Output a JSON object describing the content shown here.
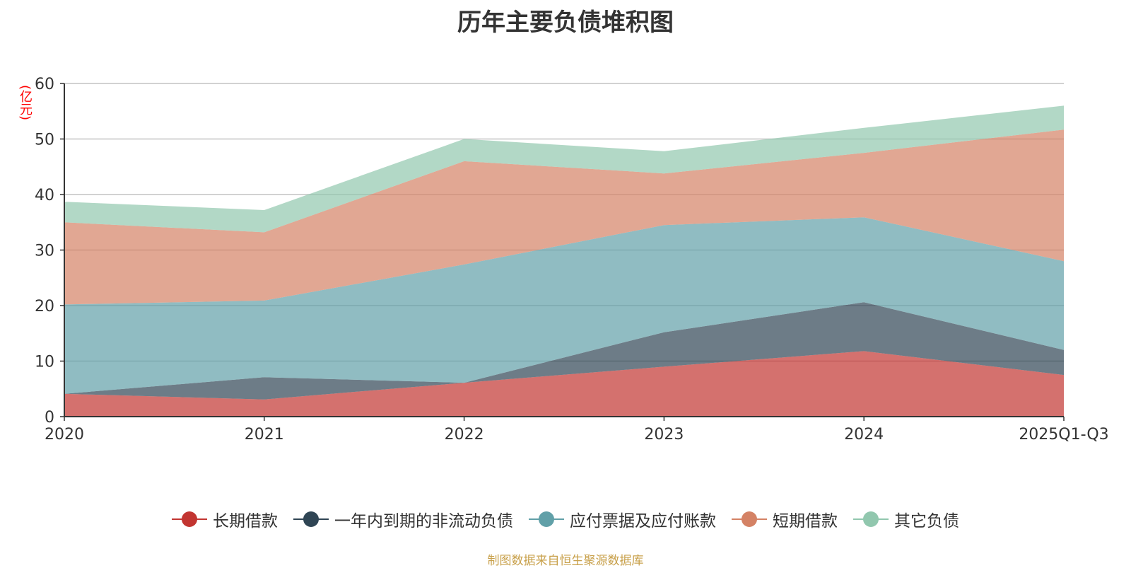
{
  "title": "历年主要负债堆积图",
  "unit": "(亿元)",
  "source": "制图数据来自恒生聚源数据库",
  "chart_data": {
    "type": "area",
    "stacked": true,
    "title": "历年主要负债堆积图",
    "xlabel": "",
    "ylabel": "(亿元)",
    "ylim": [
      0,
      60
    ],
    "yticks": [
      0,
      10,
      20,
      30,
      40,
      50,
      60
    ],
    "grid": true,
    "legend_position": "bottom",
    "categories": [
      "2020",
      "2021",
      "2022",
      "2023",
      "2024",
      "2025Q1-Q3"
    ],
    "series": [
      {
        "name": "长期借款",
        "color": "#c23531",
        "values": [
          4.1,
          3.1,
          6.1,
          9.0,
          11.8,
          7.5
        ]
      },
      {
        "name": "一年内到期的非流动负债",
        "color": "#2f4554",
        "values": [
          0.0,
          4.0,
          0.0,
          6.2,
          8.8,
          4.5
        ]
      },
      {
        "name": "应付票据及应付账款",
        "color": "#61a0a8",
        "values": [
          16.1,
          13.8,
          21.3,
          19.3,
          15.3,
          16.0
        ]
      },
      {
        "name": "短期借款",
        "color": "#d48265",
        "values": [
          14.8,
          12.3,
          18.6,
          9.3,
          11.6,
          23.7
        ]
      },
      {
        "name": "其它负债",
        "color": "#91c7ae",
        "values": [
          3.7,
          4.0,
          4.0,
          4.0,
          4.5,
          4.3
        ]
      }
    ]
  }
}
